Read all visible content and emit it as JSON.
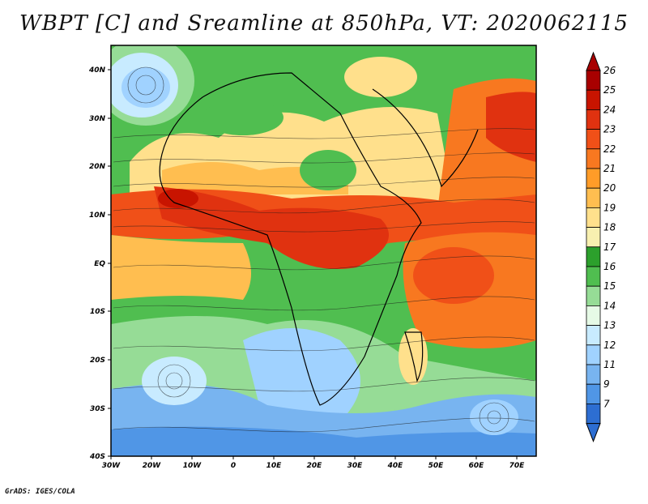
{
  "title": "WBPT [C] and Sreamline at 850hPa, VT: 2020062115",
  "credit": "GrADS: IGES/COLA",
  "axes": {
    "lat_labels": [
      "40N",
      "30N",
      "20N",
      "10N",
      "EQ",
      "10S",
      "20S",
      "30S",
      "40S"
    ],
    "lon_labels": [
      "30W",
      "20W",
      "10W",
      "0",
      "10E",
      "20E",
      "30E",
      "40E",
      "50E",
      "60E",
      "70E"
    ],
    "lat_range": [
      -40,
      45
    ],
    "lon_range": [
      -30,
      77
    ]
  },
  "colorbar": {
    "labels": [
      "26",
      "25",
      "24",
      "23",
      "22",
      "21",
      "20",
      "19",
      "18",
      "17",
      "16",
      "15",
      "14",
      "13",
      "12",
      "11",
      "9",
      "7"
    ],
    "colors": [
      "#a80000",
      "#c81400",
      "#e03210",
      "#f05018",
      "#f87820",
      "#ff9c28",
      "#ffbe50",
      "#ffe08c",
      "#f8f0b0",
      "#2ca02c",
      "#50be50",
      "#96dc96",
      "#e6fae6",
      "#c8ebff",
      "#a0d2ff",
      "#78b4f0",
      "#5096e6",
      "#2d6ed2"
    ]
  }
}
